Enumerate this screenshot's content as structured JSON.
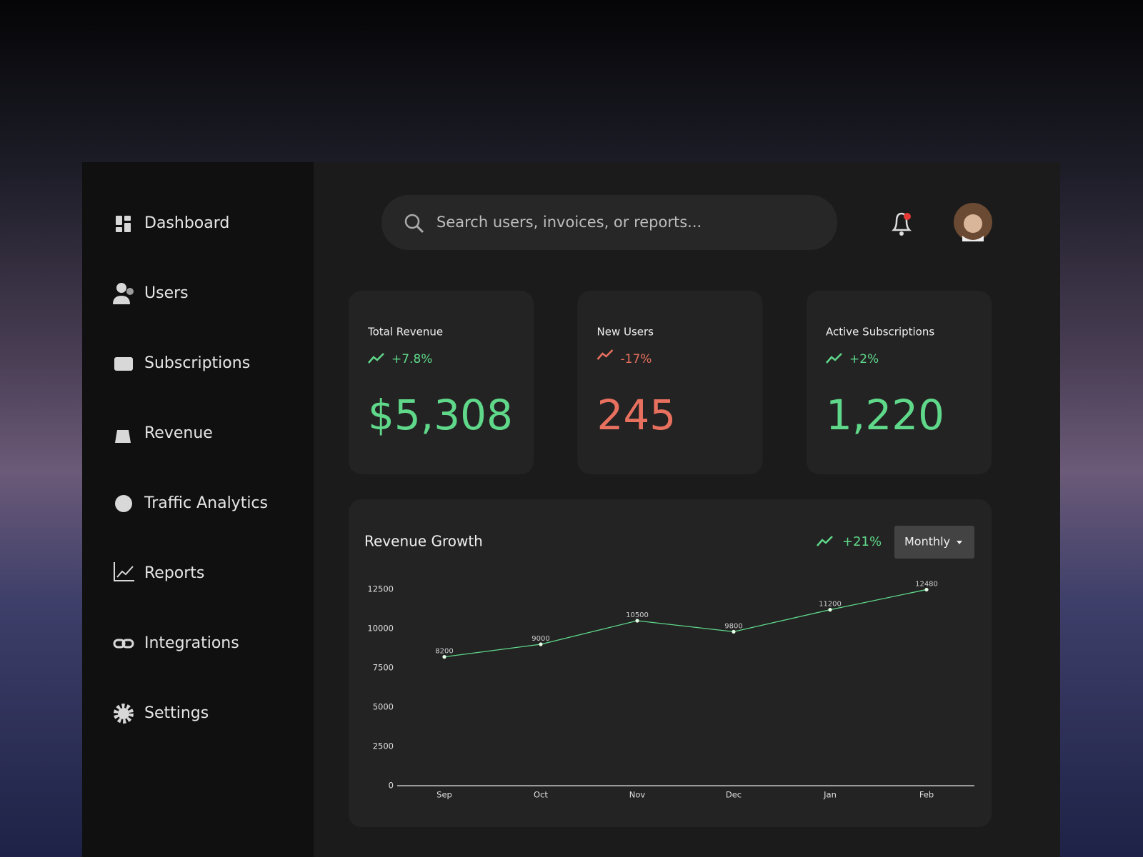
{
  "sidebar": {
    "items": [
      "Dashboard",
      "Users",
      "Subscriptions",
      "Revenue",
      "Traffic Analytics",
      "Reports",
      "Integrations",
      "Settings"
    ]
  },
  "search": {
    "placeholder": "Search users, invoices, or reports..."
  },
  "cards": [
    {
      "title": "Total Revenue",
      "change": "+7.8%",
      "value": "$5,308",
      "trend": "up"
    },
    {
      "title": "New Users",
      "change": "-17%",
      "value": "245",
      "trend": "down"
    },
    {
      "title": "Active Subscriptions",
      "change": "+2%",
      "value": "1,220",
      "trend": "up"
    }
  ],
  "chart_data": {
    "type": "line",
    "title": "Revenue Growth",
    "change": "+21%",
    "period": "Monthly",
    "categories": [
      "Sep",
      "Oct",
      "Nov",
      "Dec",
      "Jan",
      "Feb"
    ],
    "values": [
      8200,
      9000,
      10500,
      9800,
      11200,
      12480
    ],
    "color": "#5fd88a",
    "ylim": [
      0,
      12500
    ],
    "yticks": [
      0,
      2500,
      5000,
      7500,
      10000,
      12500
    ]
  }
}
